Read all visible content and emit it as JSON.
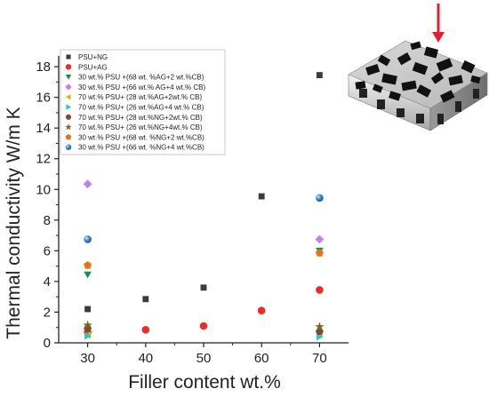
{
  "chart_data": {
    "type": "scatter",
    "title": "",
    "xlabel": "Filler content wt.%",
    "ylabel": "Thermal conductivity W/m K",
    "xlim": [
      25,
      75
    ],
    "ylim": [
      0,
      18.7
    ],
    "xticks": [
      30,
      40,
      50,
      60,
      70
    ],
    "yticks": [
      0,
      2,
      4,
      6,
      8,
      10,
      12,
      14,
      16,
      18
    ],
    "grid": false,
    "legend_position": "top-left",
    "series": [
      {
        "name": "PSU+NG",
        "marker": "square",
        "color": "#3c3c3c",
        "x": [
          30,
          40,
          50,
          60,
          70
        ],
        "y": [
          2.2,
          2.85,
          3.6,
          9.55,
          17.45
        ]
      },
      {
        "name": "PSU+AG",
        "marker": "circle",
        "color": "#ee2b2b",
        "x": [
          30,
          40,
          50,
          60,
          70
        ],
        "y": [
          0.7,
          0.85,
          1.1,
          2.1,
          3.45
        ]
      },
      {
        "name": "30 wt.% PSU +(68 wt. %AG+2 wt.%CB)",
        "marker": "triangle-down",
        "color": "#12925a",
        "x": [
          30,
          70
        ],
        "y": [
          4.45,
          6.0
        ]
      },
      {
        "name": "30 wt.% PSU +(66 wt.% AG+4 wt.% CB)",
        "marker": "diamond",
        "color": "#c382e6",
        "x": [
          30,
          70
        ],
        "y": [
          10.35,
          6.75
        ]
      },
      {
        "name": "70 wt.% PSU+ (28 wt.%AG+2wt.% CB)",
        "marker": "triangle-left",
        "color": "#e6b400",
        "x": [
          30,
          70
        ],
        "y": [
          0.5,
          0.6
        ]
      },
      {
        "name": "70 wt.% PSU+ (26 wt.%AG+4 wt.% CB)",
        "marker": "triangle-right",
        "color": "#25c8d2",
        "x": [
          30,
          70
        ],
        "y": [
          0.45,
          0.4
        ]
      },
      {
        "name": "70 wt.% PSU+ (28 wt.%NG+2wt.% CB)",
        "marker": "hexagon",
        "color": "#7a4a3c",
        "x": [
          30,
          70
        ],
        "y": [
          0.95,
          0.75
        ]
      },
      {
        "name": "70 wt.% PSU+ (26 wt.%NG+4wt.% CB)",
        "marker": "star",
        "color": "#7a6a14",
        "x": [
          30,
          70
        ],
        "y": [
          1.15,
          1.05
        ]
      },
      {
        "name": "30 wt.% PSU +(68 wt. %NG+2 wt.%CB)",
        "marker": "pentagon",
        "color": "#f07018",
        "x": [
          30,
          70
        ],
        "y": [
          5.05,
          5.85
        ]
      },
      {
        "name": "30 wt.% PSU +(66 wt. %NG+4 wt.%CB)",
        "marker": "sphere",
        "color": "#3b93d8",
        "x": [
          30,
          70
        ],
        "y": [
          6.75,
          9.45
        ]
      }
    ]
  }
}
